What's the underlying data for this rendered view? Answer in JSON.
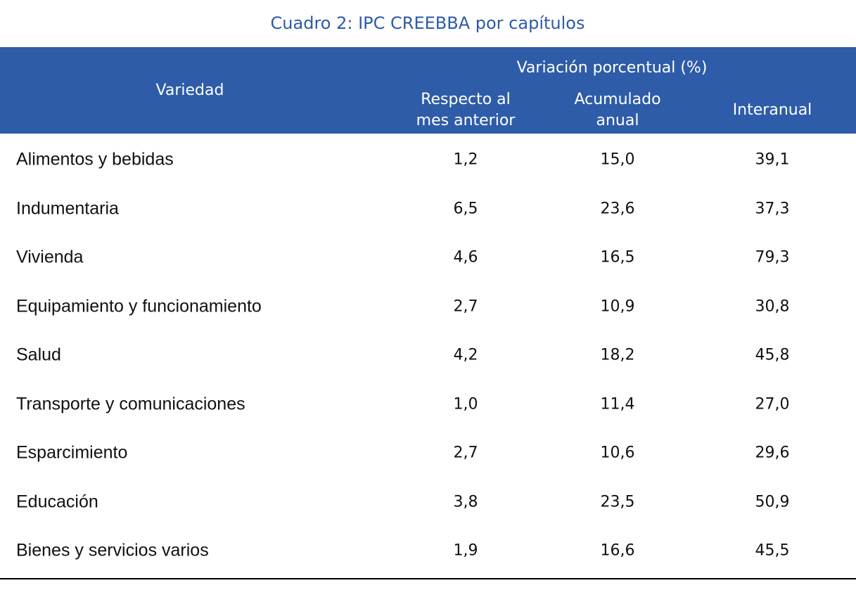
{
  "title": "Cuadro 2: IPC CREEBBA por capítulos",
  "table": {
    "header": {
      "first": "Variedad",
      "group": "Variación porcentual (%)",
      "columns": [
        [
          "Respecto al",
          "mes anterior"
        ],
        [
          "Acumulado",
          "anual"
        ],
        [
          "Interanual"
        ]
      ]
    },
    "rows": [
      [
        "Alimentos y bebidas",
        "1,2",
        "15,0",
        "39,1"
      ],
      [
        "Indumentaria",
        "6,5",
        "23,6",
        "37,3"
      ],
      [
        "Vivienda",
        "4,6",
        "16,5",
        "79,3"
      ],
      [
        "Equipamiento y funcionamiento",
        "2,7",
        "10,9",
        "30,8"
      ],
      [
        "Salud",
        "4,2",
        "18,2",
        "45,8"
      ],
      [
        "Transporte y comunicaciones",
        "1,0",
        "11,4",
        "27,0"
      ],
      [
        "Esparcimiento",
        "2,7",
        "10,6",
        "29,6"
      ],
      [
        "Educación",
        "3,8",
        "23,5",
        "50,9"
      ],
      [
        "Bienes y servicios varios",
        "1,9",
        "16,6",
        "45,5"
      ]
    ]
  }
}
